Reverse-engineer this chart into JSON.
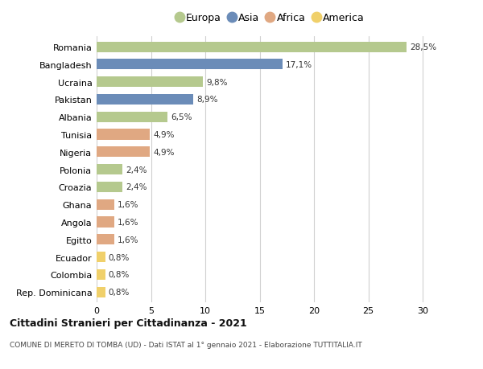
{
  "countries": [
    "Romania",
    "Bangladesh",
    "Ucraina",
    "Pakistan",
    "Albania",
    "Tunisia",
    "Nigeria",
    "Polonia",
    "Croazia",
    "Ghana",
    "Angola",
    "Egitto",
    "Ecuador",
    "Colombia",
    "Rep. Dominicana"
  ],
  "values": [
    28.5,
    17.1,
    9.8,
    8.9,
    6.5,
    4.9,
    4.9,
    2.4,
    2.4,
    1.6,
    1.6,
    1.6,
    0.8,
    0.8,
    0.8
  ],
  "labels": [
    "28,5%",
    "17,1%",
    "9,8%",
    "8,9%",
    "6,5%",
    "4,9%",
    "4,9%",
    "2,4%",
    "2,4%",
    "1,6%",
    "1,6%",
    "1,6%",
    "0,8%",
    "0,8%",
    "0,8%"
  ],
  "categories": [
    "Europa",
    "Asia",
    "Europa",
    "Asia",
    "Europa",
    "Africa",
    "Africa",
    "Europa",
    "Europa",
    "Africa",
    "Africa",
    "Africa",
    "America",
    "America",
    "America"
  ],
  "colors": {
    "Europa": "#b5c98e",
    "Asia": "#6b8cb8",
    "Africa": "#e0a882",
    "America": "#f0d06a"
  },
  "legend_order": [
    "Europa",
    "Asia",
    "Africa",
    "America"
  ],
  "title_bold": "Cittadini Stranieri per Cittadinanza - 2021",
  "subtitle": "COMUNE DI MERETO DI TOMBA (UD) - Dati ISTAT al 1° gennaio 2021 - Elaborazione TUTTITALIA.IT",
  "xlim": [
    0,
    32
  ],
  "xticks": [
    0,
    5,
    10,
    15,
    20,
    25,
    30
  ],
  "background_color": "#ffffff",
  "grid_color": "#d0d0d0",
  "bar_height": 0.6
}
